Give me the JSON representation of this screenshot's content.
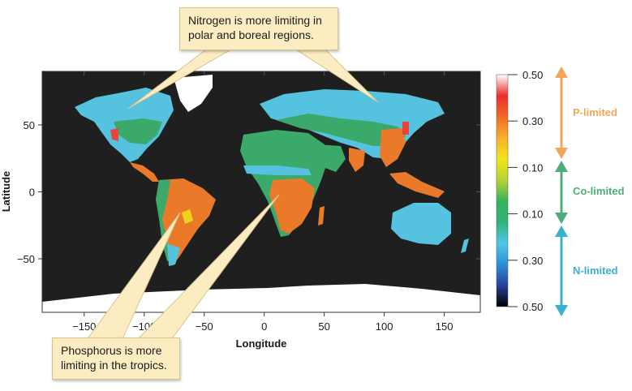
{
  "callouts": {
    "nitrogen": {
      "line1": "Nitrogen is more limiting in",
      "line2": "polar and boreal regions."
    },
    "phosphorus": {
      "line1": "Phosphorus is more",
      "line2": "limiting in the tropics."
    }
  },
  "map": {
    "x_label": "Longitude",
    "y_label": "Latitude",
    "x_ticks": [
      "−150",
      "−100",
      "−50",
      "0",
      "50",
      "100",
      "150"
    ],
    "y_ticks": [
      "50",
      "0",
      "−50"
    ],
    "x_tick_values": [
      -150,
      -100,
      -50,
      0,
      50,
      100,
      150
    ],
    "y_tick_values": [
      50,
      0,
      -50
    ],
    "colors": {
      "ocean": "#1f1f1f",
      "ice": "#ffffff",
      "n_limited": "#55c3e0",
      "co_limited": "#3aa96a",
      "p_limited": "#ea7a2a"
    }
  },
  "colorbar": {
    "ticks": [
      "0.50",
      "0.30",
      "0.10",
      "0.10",
      "0.30",
      "0.50"
    ],
    "gradient": [
      "#000000",
      "#2a3e9c",
      "#2c8fd6",
      "#4fc7e8",
      "#2fb37a",
      "#35b35a",
      "#b5d336",
      "#f1e51a",
      "#f7b12a",
      "#f06a28",
      "#ea2e2e",
      "#ffffff"
    ]
  },
  "legend": {
    "p_limited": {
      "label": "P-limited",
      "color": "#f2a65a"
    },
    "co_limited": {
      "label": "Co-limited",
      "color": "#4cad7a"
    },
    "n_limited": {
      "label": "N-limited",
      "color": "#3ab0cf"
    }
  }
}
